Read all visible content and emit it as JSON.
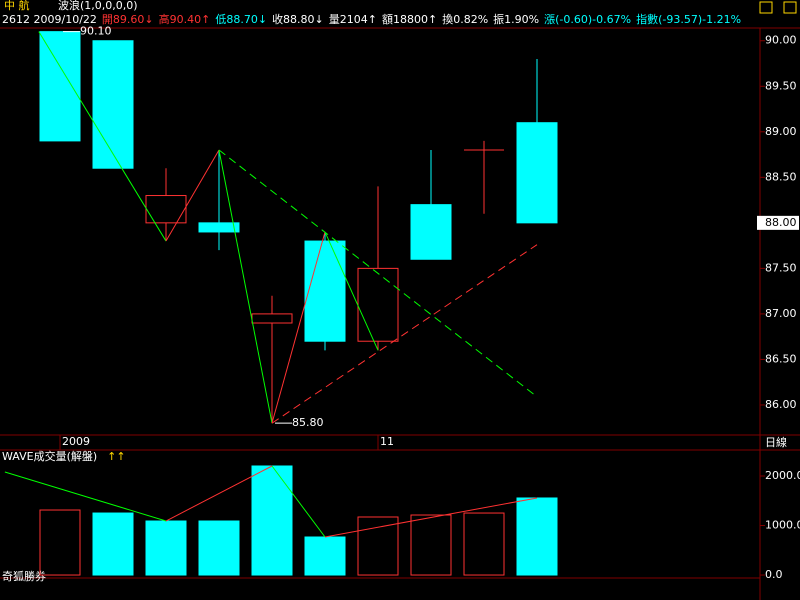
{
  "chart_data": [
    {
      "type": "candlestick",
      "title": "中  航",
      "subtitle": "波浪(1,0,0,0,0)",
      "info": [
        {
          "text": "2612  2009/10/22",
          "color": "#ffffff"
        },
        {
          "text": "開89.60↓",
          "color": "#ff3232"
        },
        {
          "text": "高90.40↑",
          "color": "#ff3232"
        },
        {
          "text": "低88.70↓",
          "color": "#00ffff"
        },
        {
          "text": "收88.80↓",
          "color": "#ffffff"
        },
        {
          "text": "量2104↑",
          "color": "#ffffff"
        },
        {
          "text": "額18800↑",
          "color": "#ffffff"
        },
        {
          "text": "換0.82%",
          "color": "#ffffff"
        },
        {
          "text": "振1.90%",
          "color": "#ffffff"
        },
        {
          "text": "漲(-0.60)-0.67%",
          "color": "#00ffff"
        },
        {
          "text": "指數(-93.57)-1.21%",
          "color": "#00ffff"
        }
      ],
      "categories": [
        "2009",
        null,
        null,
        null,
        null,
        null,
        "11",
        null,
        null,
        null
      ],
      "open": [
        90.1,
        90.0,
        88.0,
        88.0,
        86.9,
        87.8,
        86.7,
        88.2,
        88.8,
        89.1
      ],
      "high": [
        90.1,
        90.0,
        88.6,
        88.8,
        87.2,
        87.9,
        88.4,
        88.8,
        88.9,
        89.8
      ],
      "low": [
        88.9,
        88.6,
        87.8,
        87.7,
        85.8,
        86.6,
        86.6,
        87.6,
        88.1,
        88.0
      ],
      "close": [
        88.9,
        88.6,
        88.3,
        87.9,
        87.0,
        86.7,
        87.5,
        87.6,
        88.8,
        88.0
      ],
      "up_color": "#ff3232",
      "down_color": "#00ffff",
      "ylim": [
        85.67,
        90.14
      ],
      "yticks": [
        {
          "value": 86,
          "label": "86.00"
        },
        {
          "value": 86.5,
          "label": "86.50"
        },
        {
          "value": 87,
          "label": "87.00"
        },
        {
          "value": 87.5,
          "label": "87.50"
        },
        {
          "value": 88,
          "label": "88.00"
        },
        {
          "value": 88.5,
          "label": "88.50"
        },
        {
          "value": 89,
          "label": "89.00"
        },
        {
          "value": 89.5,
          "label": "89.50"
        },
        {
          "value": 90,
          "label": "90.00"
        }
      ],
      "wave": {
        "x": [
          -0.4,
          2,
          3,
          4,
          5,
          6
        ],
        "values": [
          90.1,
          87.8,
          88.8,
          85.8,
          87.9,
          86.6
        ]
      },
      "trend_lines": [
        {
          "x": [
            3,
            9
          ],
          "values": [
            88.8,
            86.09
          ],
          "color": "#00ff00"
        },
        {
          "x": [
            4,
            9
          ],
          "values": [
            85.8,
            87.76
          ],
          "color": "#ff3232"
        }
      ],
      "annotations": [
        {
          "x": 0,
          "value": 90.1,
          "label": "90.10"
        },
        {
          "x": 4,
          "value": 85.8,
          "label": "85.80"
        }
      ],
      "period_label": "日線"
    },
    {
      "type": "bar",
      "title": "WAVE成交量(解盤)",
      "title_marks": "↑↑",
      "values": [
        1313,
        1252,
        1091,
        1091,
        2202,
        768,
        1172,
        1212,
        1252,
        1556
      ],
      "colors": [
        "#ff3232",
        "#00ffff",
        "#00ffff",
        "#00ffff",
        "#00ffff",
        "#00ffff",
        "#ff3232",
        "#ff3232",
        "#ff3232",
        "#00ffff"
      ],
      "ylim": [
        -60,
        2525
      ],
      "yticks": [
        {
          "value": 0,
          "label": "0.0"
        },
        {
          "value": 1000,
          "label": "1000.0"
        },
        {
          "value": 2000,
          "label": "2000.0"
        }
      ],
      "wave": {
        "x": [
          -1.04,
          2,
          4,
          5,
          9
        ],
        "values": [
          2080,
          1091,
          2202,
          768,
          1556
        ]
      },
      "footer": "奇狐勝券"
    }
  ]
}
